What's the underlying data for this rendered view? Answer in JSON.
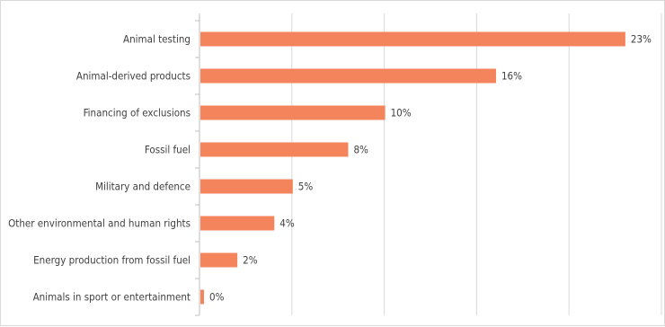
{
  "chart_data": {
    "type": "bar",
    "orientation": "horizontal",
    "categories": [
      "Animal testing",
      "Animal-derived products",
      "Financing of exclusions",
      "Fossil fuel",
      "Military and defence",
      "Other environmental and human rights",
      "Energy production from fossil fuel",
      "Animals in sport or entertainment"
    ],
    "values": [
      23,
      16,
      10,
      8,
      5,
      4,
      2,
      0
    ],
    "value_labels": [
      "23%",
      "16%",
      "10%",
      "8%",
      "5%",
      "4%",
      "2%",
      "0%"
    ],
    "xlim": [
      0,
      25
    ],
    "grid": true,
    "bar_color": "#f4845c",
    "grid_color": "#d9d9d9",
    "axis_color": "#bfbfbf",
    "title": "",
    "xlabel": "",
    "ylabel": ""
  }
}
